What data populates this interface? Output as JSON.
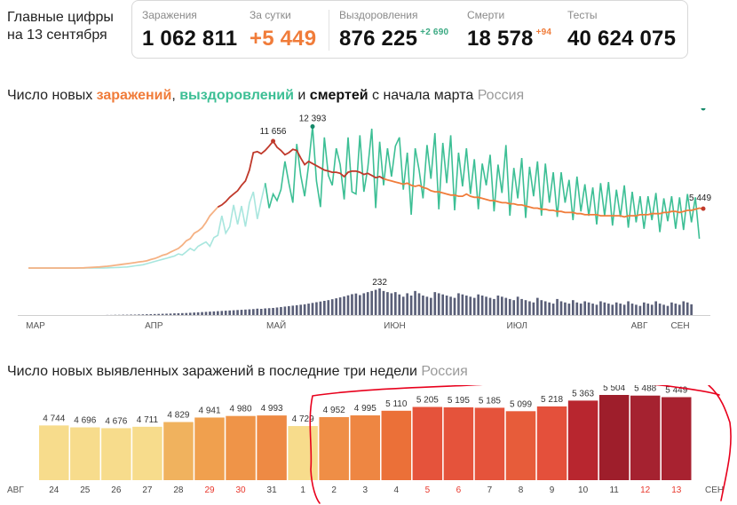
{
  "header": {
    "title_line1": "Главные цифры",
    "title_line2": "на 13 сентября"
  },
  "stats": [
    {
      "label": "Заражения",
      "value": "1 062 811",
      "value_color": "#111111"
    },
    {
      "label": "За сутки",
      "value": "+5 449",
      "value_color": "#f07c3a"
    },
    {
      "label": "Выздоровления",
      "value": "876 225",
      "delta": "+2 690",
      "delta_color": "#3aa982"
    },
    {
      "label": "Смерти",
      "value": "18 578",
      "delta": "+94",
      "delta_color": "#f07c3a"
    },
    {
      "label": "Тесты",
      "value": "40 624 075"
    }
  ],
  "chart1_heading": {
    "part1": "Число новых ",
    "infections": "заражений",
    "comma": ", ",
    "recoveries": "выздоровлений",
    "and": " и ",
    "deaths": "смертей",
    "part2": " с начала марта",
    "region": "Россия"
  },
  "chart2_heading": {
    "text": "Число новых выявленных заражений в последние три недели",
    "region": "Россия"
  },
  "colors": {
    "infections": "#f07c3a",
    "infections_late": "#c0392b",
    "recoveries": "#3dbf95",
    "recoveries_early": "#a8e6de",
    "deaths_bar": "#5a5f78",
    "annotation_red": "#e8001c"
  },
  "chart_data": [
    {
      "type": "line",
      "title": "Число новых заражений, выздоровлений и смертей с начала марта",
      "month_labels": [
        "МАР",
        "АПР",
        "МАЙ",
        "ИЮН",
        "ИЮЛ",
        "АВГ",
        "СЕН"
      ],
      "series": [
        {
          "name": "заражения",
          "values": [
            0,
            0,
            0,
            0,
            0,
            0,
            0,
            0,
            0,
            0,
            0,
            0,
            0,
            10,
            20,
            40,
            60,
            80,
            100,
            130,
            160,
            200,
            250,
            300,
            350,
            400,
            450,
            500,
            560,
            600,
            660,
            780,
            870,
            1010,
            1170,
            1270,
            1460,
            1630,
            1800,
            2100,
            2500,
            2700,
            3200,
            3400,
            3700,
            4200,
            4800,
            5200,
            5600,
            5800,
            6100,
            6500,
            6800,
            7100,
            7600,
            8000,
            9000,
            10600,
            10700,
            10500,
            10800,
            11200,
            11656,
            11100,
            10800,
            10400,
            10600,
            10900,
            10800,
            10100,
            9500,
            9800,
            9600,
            9400,
            9200,
            9000,
            8900,
            8800,
            8800,
            8700,
            8400,
            8800,
            8900,
            8900,
            8800,
            8600,
            8700,
            8500,
            8300,
            8400,
            8200,
            8100,
            8000,
            7900,
            7800,
            7700,
            7800,
            7600,
            7500,
            7600,
            7400,
            7300,
            7100,
            7000,
            7000,
            6900,
            6800,
            6700,
            6700,
            6600,
            6600,
            6800,
            6600,
            6500,
            6500,
            6400,
            6300,
            6200,
            6200,
            6100,
            6000,
            6000,
            5900,
            5900,
            5800,
            5800,
            5700,
            5600,
            5500,
            5500,
            5400,
            5400,
            5300,
            5300,
            5200,
            5200,
            5100,
            5100,
            5100,
            5000,
            5000,
            4900,
            4900,
            4900,
            4900,
            4800,
            4800,
            4800,
            4800,
            4800,
            4800,
            4700,
            4800,
            4800,
            4800,
            4900,
            4900,
            4900,
            5000,
            5000,
            5000,
            5100,
            5100,
            5200,
            5200,
            5100,
            5200,
            5300,
            5300,
            5400,
            5500,
            5449
          ]
        },
        {
          "name": "выздоровления",
          "values": [
            0,
            0,
            0,
            0,
            0,
            0,
            0,
            0,
            0,
            0,
            0,
            0,
            0,
            0,
            0,
            0,
            0,
            0,
            0,
            10,
            20,
            30,
            40,
            60,
            80,
            100,
            150,
            200,
            250,
            300,
            400,
            500,
            600,
            700,
            800,
            900,
            1000,
            1100,
            1300,
            1200,
            1500,
            1800,
            1600,
            2000,
            2200,
            2400,
            2000,
            2800,
            3000,
            4800,
            3200,
            3800,
            5800,
            4000,
            5700,
            3800,
            6000,
            7000,
            4500,
            6200,
            7800,
            5500,
            6800,
            6200,
            7200,
            9800,
            7800,
            6000,
            11400,
            8500,
            6600,
            9500,
            13000,
            8000,
            5600,
            12000,
            8500,
            7600,
            11000,
            9500,
            6300,
            12000,
            7000,
            6800,
            12200,
            7000,
            9200,
            12800,
            5500,
            11600,
            7600,
            11000,
            8400,
            11200,
            12000,
            7200,
            10600,
            4900,
            11000,
            9000,
            6400,
            11300,
            8200,
            12393,
            5400,
            11500,
            7800,
            12200,
            5300,
            10600,
            7500,
            11000,
            6800,
            10000,
            5400,
            9600,
            7600,
            10400,
            5200,
            9500,
            6900,
            11300,
            4800,
            9200,
            6400,
            10100,
            4600,
            9300,
            6600,
            9800,
            4800,
            9600,
            6000,
            8800,
            4700,
            8800,
            6000,
            8100,
            4400,
            8400,
            5200,
            7700,
            4800,
            7400,
            4000,
            7800,
            4800,
            7900,
            3900,
            7200,
            4700,
            7600,
            3700,
            7000,
            4200,
            6600,
            3600,
            6600,
            4400,
            6900,
            3300,
            6400,
            4300,
            6600,
            3600,
            6500,
            3500,
            6800,
            4200,
            6500,
            2690
          ]
        }
      ],
      "annotations": [
        {
          "series": "заражения",
          "label": "11 656"
        },
        {
          "series": "выздоровления",
          "label": "12 393"
        },
        {
          "series": "заражения",
          "label": "5 449"
        },
        {
          "series": "выздоровления",
          "label": "2 690"
        }
      ],
      "deaths_series": {
        "name": "смерти",
        "values": [
          0,
          0,
          0,
          0,
          0,
          0,
          0,
          0,
          0,
          0,
          0,
          0,
          0,
          0,
          0,
          0,
          0,
          0,
          0,
          0,
          1,
          1,
          2,
          2,
          3,
          3,
          4,
          4,
          5,
          6,
          7,
          8,
          9,
          10,
          11,
          12,
          13,
          15,
          16,
          17,
          18,
          20,
          22,
          24,
          26,
          28,
          30,
          32,
          34,
          36,
          38,
          40,
          42,
          44,
          46,
          48,
          50,
          52,
          56,
          54,
          58,
          60,
          62,
          66,
          70,
          74,
          78,
          82,
          86,
          90,
          94,
          100,
          106,
          112,
          118,
          124,
          130,
          138,
          146,
          154,
          162,
          172,
          182,
          188,
          174,
          190,
          200,
          210,
          220,
          232,
          210,
          200,
          190,
          200,
          180,
          160,
          190,
          170,
          210,
          190,
          170,
          160,
          150,
          200,
          190,
          180,
          170,
          160,
          150,
          190,
          180,
          170,
          160,
          150,
          180,
          170,
          160,
          150,
          140,
          170,
          160,
          150,
          140,
          130,
          160,
          140,
          130,
          120,
          110,
          150,
          130,
          120,
          110,
          100,
          140,
          120,
          110,
          100,
          130,
          110,
          100,
          120,
          110,
          100,
          90,
          120,
          110,
          100,
          90,
          110,
          100,
          90,
          120,
          100,
          90,
          80,
          110,
          100,
          90,
          120,
          100,
          90,
          80,
          110,
          100,
          90,
          120,
          110,
          94
        ],
        "peak_label": "232",
        "last_label": "94"
      }
    },
    {
      "type": "bar",
      "title": "Число новых выявленных заражений в последние три недели",
      "categories": [
        "24",
        "25",
        "26",
        "27",
        "28",
        "29",
        "30",
        "31",
        "1",
        "2",
        "3",
        "4",
        "5",
        "6",
        "7",
        "8",
        "9",
        "10",
        "11",
        "12",
        "13"
      ],
      "values": [
        4744,
        4696,
        4676,
        4711,
        4829,
        4941,
        4980,
        4993,
        4729,
        4952,
        4995,
        5110,
        5205,
        5195,
        5185,
        5099,
        5218,
        5363,
        5504,
        5488,
        5449
      ],
      "value_labels": [
        "4 744",
        "4 696",
        "4 676",
        "4 711",
        "4 829",
        "4 941",
        "4 980",
        "4 993",
        "4 729",
        "4 952",
        "4 995",
        "5 110",
        "5 205",
        "5 195",
        "5 185",
        "5 099",
        "5 218",
        "5 363",
        "5 504",
        "5 488",
        "5 449"
      ],
      "bar_colors": [
        "#f7dc8c",
        "#f7dc8c",
        "#f7dc8c",
        "#f7dc8c",
        "#f0b25e",
        "#f0a04e",
        "#ef9448",
        "#ee8a44",
        "#f7dc8c",
        "#ef8e46",
        "#ee8642",
        "#eb7038",
        "#e5533b",
        "#e5533b",
        "#e5533b",
        "#e75c3a",
        "#e4503b",
        "#b8262f",
        "#9e1e2b",
        "#a52230",
        "#a82230"
      ],
      "label_colors": [
        "#444444",
        "#444444",
        "#444444",
        "#444444",
        "#444444",
        "#e8372c",
        "#e8372c",
        "#444444",
        "#444444",
        "#444444",
        "#444444",
        "#444444",
        "#e8372c",
        "#e8372c",
        "#444444",
        "#444444",
        "#444444",
        "#444444",
        "#444444",
        "#e8372c",
        "#e8372c"
      ],
      "axis_left": "АВГ",
      "axis_right": "СЕН"
    }
  ]
}
